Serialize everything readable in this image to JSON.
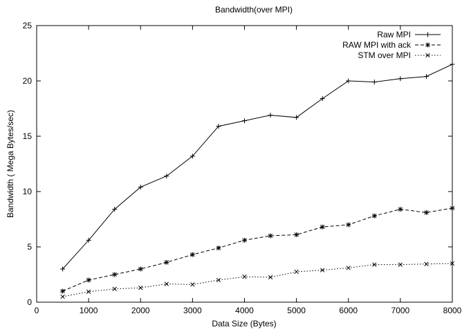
{
  "chart_data": {
    "type": "line",
    "title": "Bandwidth(over MPI)",
    "xlabel": "Data Size (Bytes)",
    "ylabel": "Bandwidth ( Mega Bytes/sec)",
    "xlim": [
      0,
      8000
    ],
    "ylim": [
      0,
      25
    ],
    "xticks": [
      0,
      1000,
      2000,
      3000,
      4000,
      5000,
      6000,
      7000,
      8000
    ],
    "yticks": [
      0,
      5,
      10,
      15,
      20,
      25
    ],
    "grid": false,
    "legend_position": "top-right",
    "x": [
      500,
      1000,
      1500,
      2000,
      2500,
      3000,
      3500,
      4000,
      4500,
      5000,
      5500,
      6000,
      6500,
      7000,
      7500,
      8000
    ],
    "series": [
      {
        "name": "Raw MPI",
        "line_style": "solid",
        "marker": "plus",
        "values": [
          3.0,
          5.6,
          8.4,
          10.4,
          11.4,
          13.2,
          15.9,
          16.4,
          16.9,
          16.7,
          18.4,
          20.0,
          19.9,
          20.2,
          20.4,
          21.5
        ]
      },
      {
        "name": "RAW MPI with ack",
        "line_style": "dashed",
        "marker": "star",
        "values": [
          1.0,
          2.0,
          2.5,
          3.0,
          3.6,
          4.3,
          4.9,
          5.6,
          6.0,
          6.1,
          6.8,
          7.0,
          7.8,
          8.4,
          8.1,
          8.5
        ]
      },
      {
        "name": "STM over MPI",
        "line_style": "dotted",
        "marker": "cross",
        "values": [
          0.5,
          0.95,
          1.2,
          1.3,
          1.65,
          1.6,
          2.0,
          2.3,
          2.25,
          2.75,
          2.9,
          3.1,
          3.4,
          3.4,
          3.45,
          3.5
        ]
      }
    ]
  }
}
